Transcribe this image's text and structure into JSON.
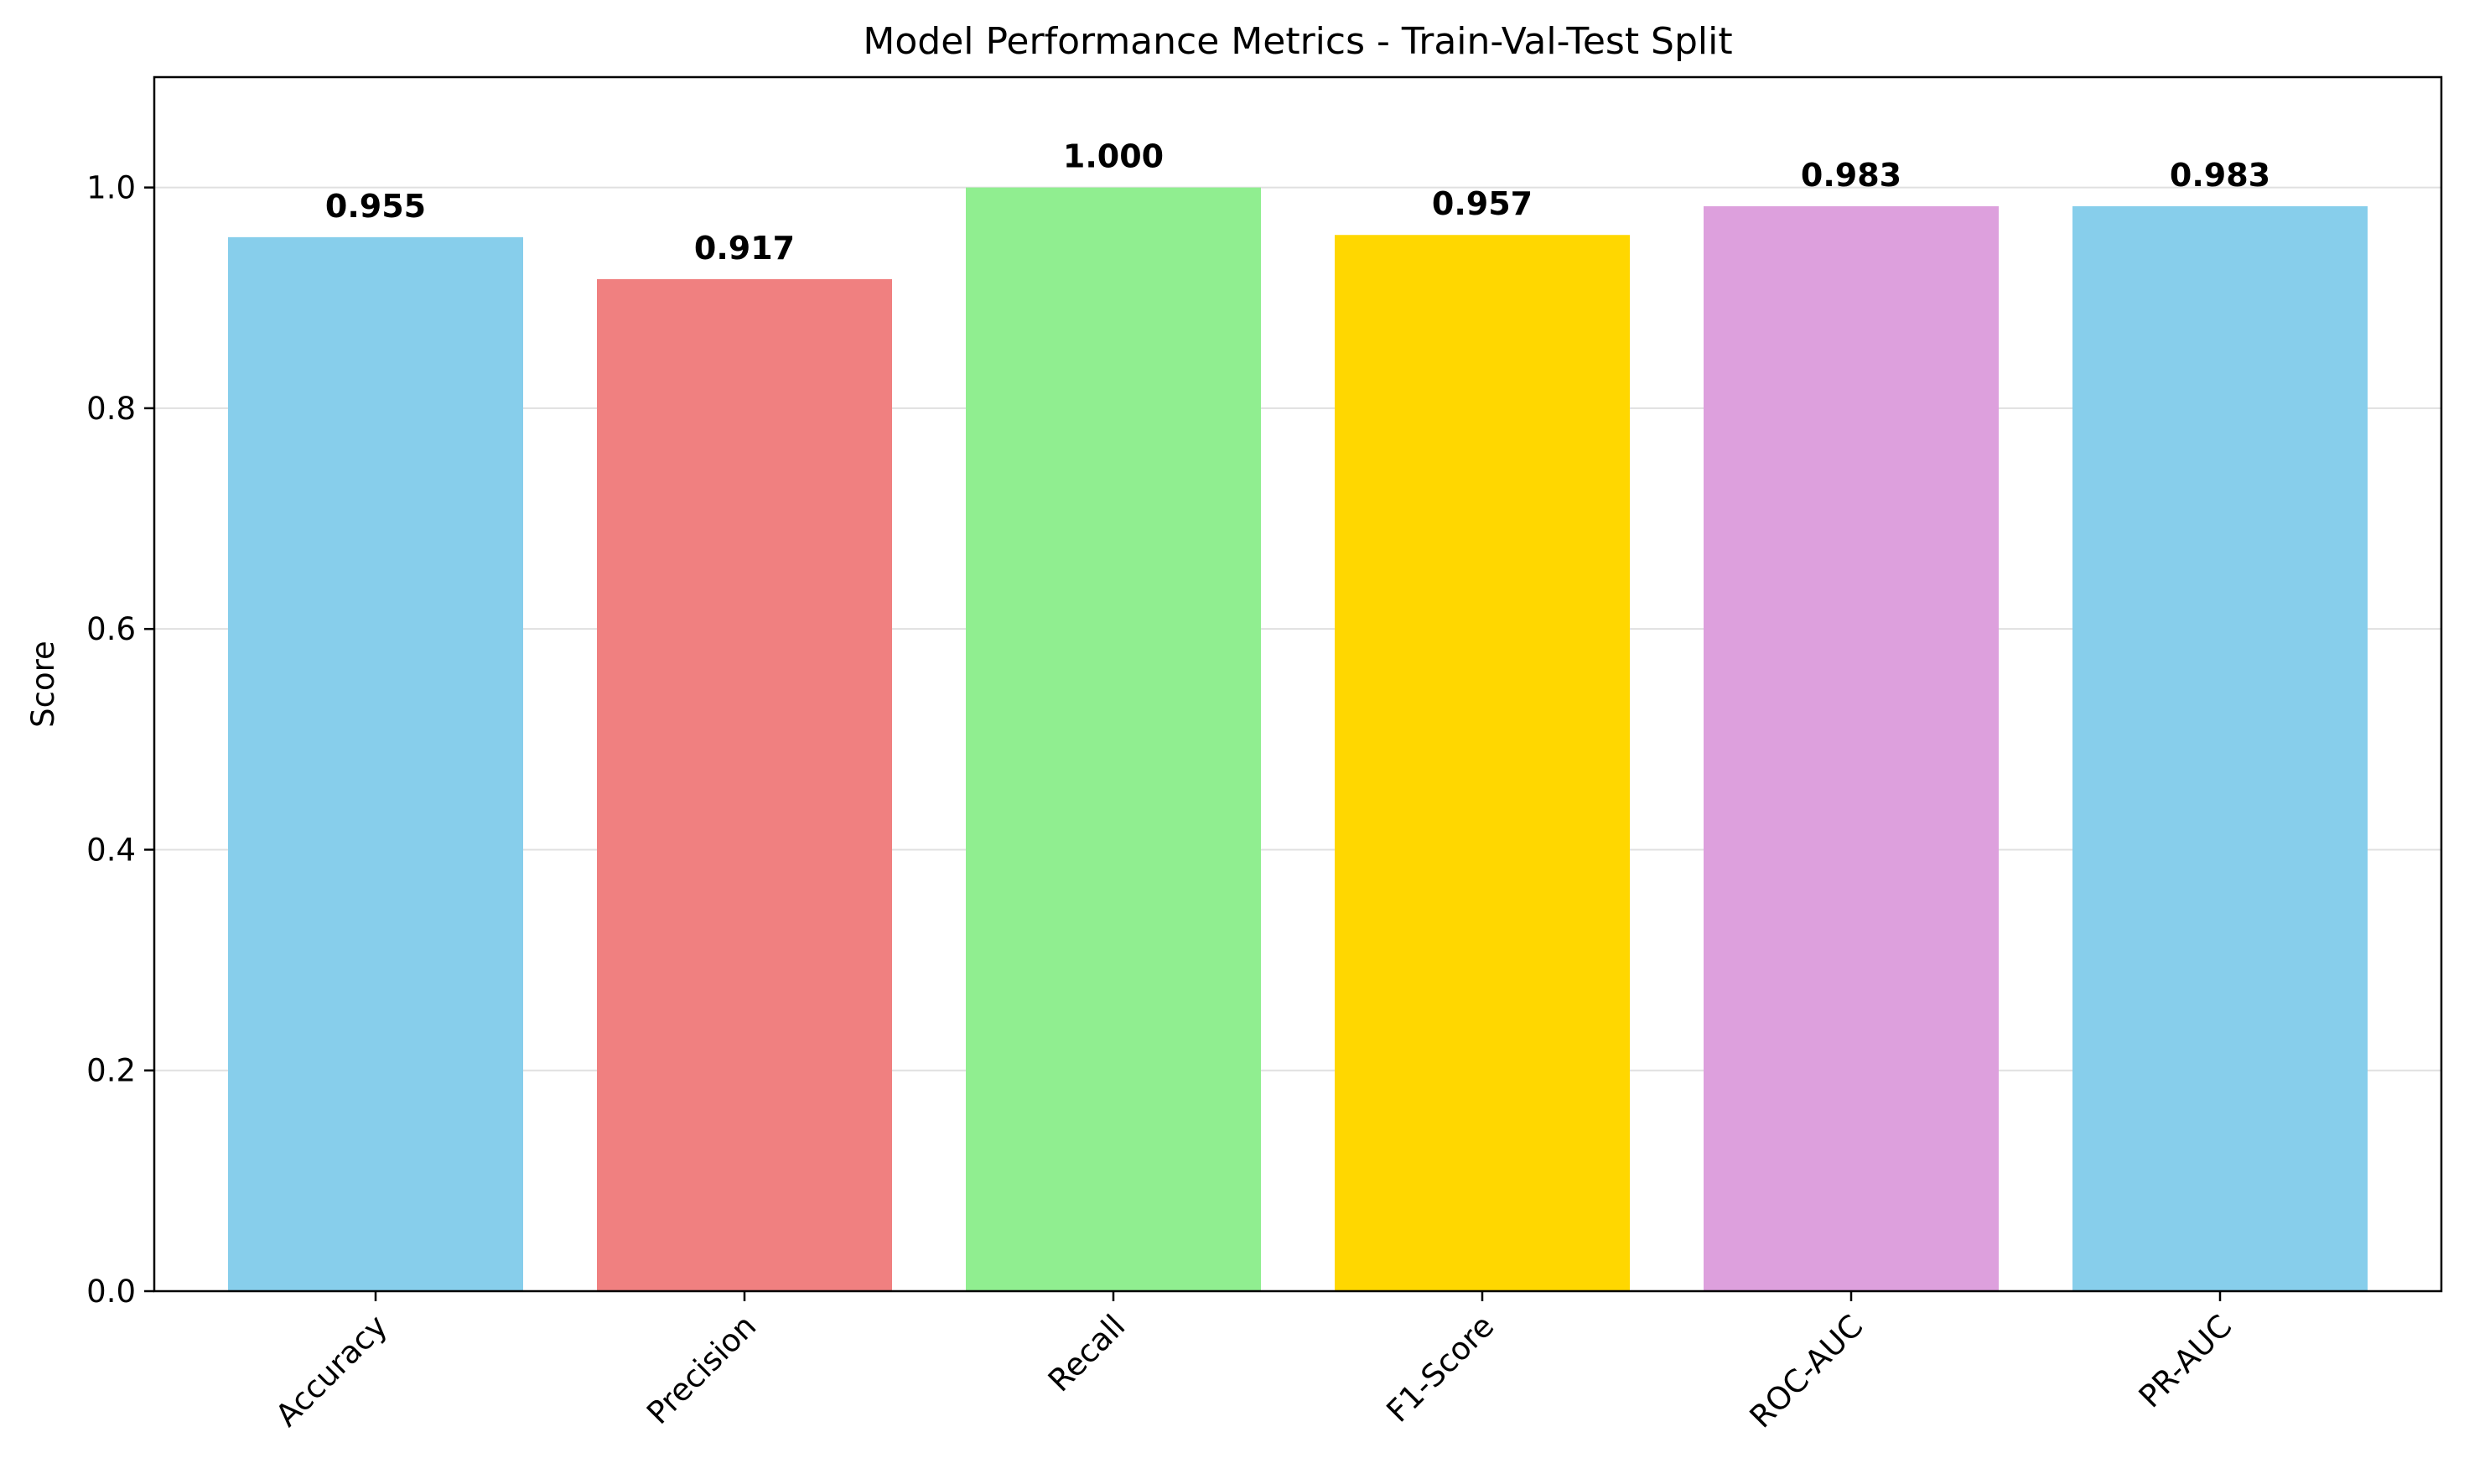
{
  "chart_data": {
    "type": "bar",
    "title": "Model Performance Metrics - Train-Val-Test Split",
    "xlabel": "",
    "ylabel": "Score",
    "categories": [
      "Accuracy",
      "Precision",
      "Recall",
      "F1-Score",
      "ROC-AUC",
      "PR-AUC"
    ],
    "values": [
      0.955,
      0.917,
      1.0,
      0.957,
      0.983,
      0.983
    ],
    "value_labels": [
      "0.955",
      "0.917",
      "1.000",
      "0.957",
      "0.983",
      "0.983"
    ],
    "colors": [
      "#87ceeb",
      "#f08080",
      "#90ee90",
      "#ffd700",
      "#dda0dd",
      "#87ceeb"
    ],
    "ylim": [
      0,
      1.1
    ],
    "yticks": [
      0.0,
      0.2,
      0.4,
      0.6,
      0.8,
      1.0
    ],
    "ytick_labels": [
      "0.0",
      "0.2",
      "0.4",
      "0.6",
      "0.8",
      "1.0"
    ],
    "grid": "y",
    "legend": "none"
  }
}
